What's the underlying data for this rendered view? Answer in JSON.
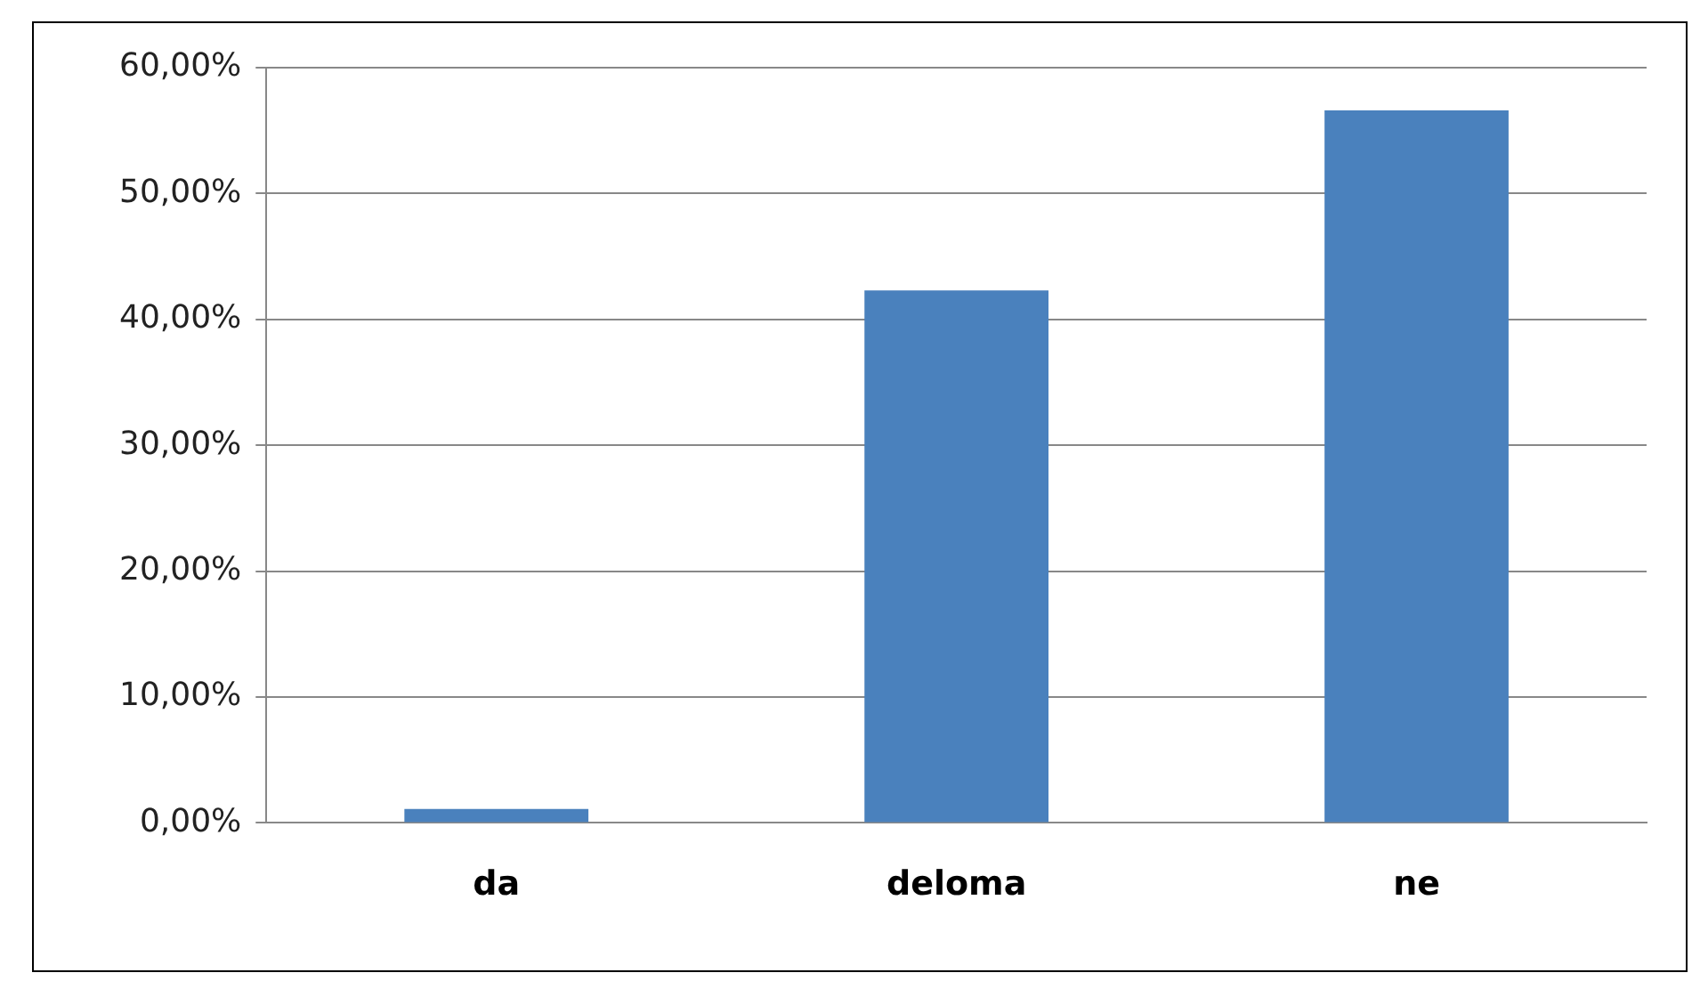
{
  "chart_data": {
    "type": "bar",
    "categories": [
      "da",
      "deloma",
      "ne"
    ],
    "values": [
      1.1,
      42.3,
      56.6
    ],
    "color": "#4a81bd",
    "ylim": [
      0,
      60
    ],
    "yticks": [
      {
        "value": 0,
        "label": "0,00%"
      },
      {
        "value": 10,
        "label": "10,00%"
      },
      {
        "value": 20,
        "label": "20,00%"
      },
      {
        "value": 30,
        "label": "30,00%"
      },
      {
        "value": 40,
        "label": "40,00%"
      },
      {
        "value": 50,
        "label": "50,00%"
      },
      {
        "value": 60,
        "label": "60,00%"
      }
    ],
    "grid": "y",
    "legend": false
  }
}
